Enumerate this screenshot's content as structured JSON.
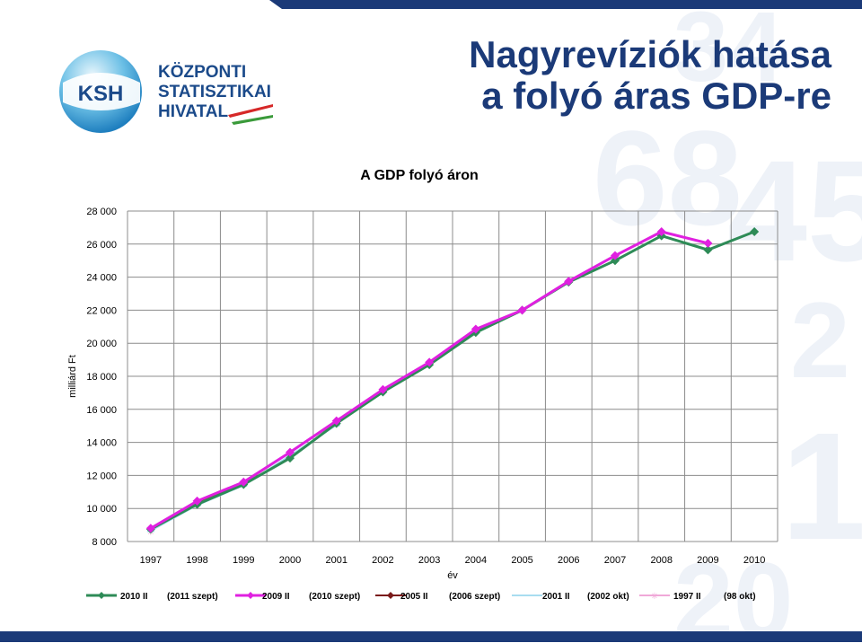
{
  "slide": {
    "title_line1": "Nagyrevíziók hatása",
    "title_line2": "a folyó áras GDP-re"
  },
  "logo": {
    "mark_text": "KSH",
    "line1": "KÖZPONTI",
    "line2": "STATISZTIKAI",
    "line3": "HIVATAL"
  },
  "colors": {
    "title": "#1b3a78",
    "accent_bar": "#1b3a78",
    "series_2010": "#2e8b57",
    "series_2009": "#e020e0",
    "series_2005": "#7a1a1a",
    "series_2001": "#a8ddf0",
    "series_1997": "#f0a8d8"
  },
  "chart_data": {
    "type": "line",
    "title": "A GDP folyó áron",
    "xlabel": "év",
    "ylabel": "milliárd Ft",
    "ylim": [
      8000,
      28000
    ],
    "ytick_values": [
      8000,
      10000,
      12000,
      14000,
      16000,
      18000,
      20000,
      22000,
      24000,
      26000,
      28000
    ],
    "ytick_labels": [
      "8 000",
      "10 000",
      "12 000",
      "14 000",
      "16 000",
      "18 000",
      "20 000",
      "22 000",
      "24 000",
      "26 000",
      "28 000"
    ],
    "categories": [
      "1997",
      "1998",
      "1999",
      "2000",
      "2001",
      "2002",
      "2003",
      "2004",
      "2005",
      "2006",
      "2007",
      "2008",
      "2009",
      "2010"
    ],
    "grid": true,
    "legend_position": "bottom",
    "series": [
      {
        "name": "2010 II",
        "label2": "(2011 szept)",
        "marker": "diamond",
        "values": [
          8750,
          10250,
          11450,
          13050,
          15150,
          17050,
          18700,
          20650,
          22000,
          23700,
          25000,
          26500,
          25650,
          26750
        ]
      },
      {
        "name": "2009 II",
        "label2": "(2010 szept)",
        "marker": "diamond",
        "values": [
          8800,
          10450,
          11600,
          13400,
          15300,
          17200,
          18850,
          20850,
          22000,
          23750,
          25300,
          26750,
          26050,
          null
        ]
      },
      {
        "name": "2005 II",
        "label2": "(2006 szept)",
        "marker": "diamond",
        "values": [
          8780,
          10400,
          11550,
          13400,
          15250,
          17150,
          18800,
          20800,
          22000,
          null,
          null,
          null,
          null,
          null
        ]
      },
      {
        "name": "2001 II",
        "label2": "(2002 okt)",
        "marker": "dash",
        "values": [
          8650,
          10200,
          11400,
          13200,
          15050,
          null,
          null,
          null,
          null,
          null,
          null,
          null,
          null,
          null
        ]
      },
      {
        "name": "1997 II",
        "label2": "(98 okt)",
        "marker": "star",
        "values": [
          8600,
          null,
          null,
          null,
          null,
          null,
          null,
          null,
          null,
          null,
          null,
          null,
          null,
          null
        ]
      }
    ]
  }
}
